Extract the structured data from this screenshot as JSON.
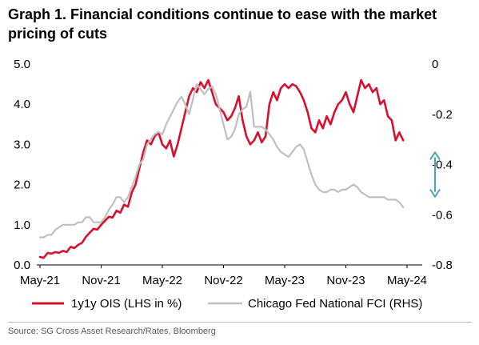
{
  "chart_data": {
    "type": "line",
    "title": "Graph 1. Financial conditions continue to ease with the market pricing of cuts",
    "source": "Source: SG Cross Asset Research/Rates, Bloomberg",
    "x_tick_labels": [
      "May-21",
      "Nov-21",
      "May-22",
      "Nov-22",
      "May-23",
      "Nov-23",
      "May-24"
    ],
    "y_left": {
      "range": [
        0.0,
        5.0
      ],
      "tick_labels": [
        "0.0",
        "1.0",
        "2.0",
        "3.0",
        "4.0",
        "5.0"
      ],
      "tick_values": [
        0.0,
        1.0,
        2.0,
        3.0,
        4.0,
        5.0
      ]
    },
    "y_right": {
      "range": [
        -0.8,
        0.0
      ],
      "tick_labels": [
        "-0.8",
        "-0.6",
        "-0.4",
        "-0.2",
        "0"
      ],
      "tick_values": [
        -0.8,
        -0.6,
        -0.4,
        -0.2,
        0.0
      ]
    },
    "legend_position": "bottom",
    "grid": false,
    "series": [
      {
        "name": "1y1y OIS (LHS in %)",
        "axis": "left",
        "color": "#d6102e",
        "points": [
          [
            0.0,
            0.2
          ],
          [
            0.25,
            0.18
          ],
          [
            0.5,
            0.3
          ],
          [
            0.75,
            0.28
          ],
          [
            1.0,
            0.32
          ],
          [
            1.25,
            0.3
          ],
          [
            1.5,
            0.35
          ],
          [
            1.75,
            0.32
          ],
          [
            2.0,
            0.45
          ],
          [
            2.25,
            0.42
          ],
          [
            2.5,
            0.5
          ],
          [
            2.75,
            0.55
          ],
          [
            3.0,
            0.7
          ],
          [
            3.25,
            0.8
          ],
          [
            3.5,
            0.9
          ],
          [
            3.75,
            0.88
          ],
          [
            4.0,
            1.0
          ],
          [
            4.25,
            1.1
          ],
          [
            4.5,
            1.2
          ],
          [
            4.75,
            1.18
          ],
          [
            5.0,
            1.35
          ],
          [
            5.25,
            1.3
          ],
          [
            5.5,
            1.5
          ],
          [
            5.75,
            1.45
          ],
          [
            6.0,
            1.8
          ],
          [
            6.25,
            2.0
          ],
          [
            6.5,
            2.4
          ],
          [
            6.75,
            2.8
          ],
          [
            7.0,
            3.1
          ],
          [
            7.25,
            3.0
          ],
          [
            7.5,
            3.2
          ],
          [
            7.75,
            3.3
          ],
          [
            8.0,
            3.0
          ],
          [
            8.25,
            2.9
          ],
          [
            8.5,
            3.1
          ],
          [
            8.75,
            2.7
          ],
          [
            9.0,
            3.0
          ],
          [
            9.25,
            3.4
          ],
          [
            9.5,
            3.8
          ],
          [
            9.75,
            4.2
          ],
          [
            10.0,
            4.4
          ],
          [
            10.25,
            4.3
          ],
          [
            10.5,
            4.55
          ],
          [
            10.75,
            4.4
          ],
          [
            11.0,
            4.6
          ],
          [
            11.25,
            4.3
          ],
          [
            11.5,
            4.0
          ],
          [
            11.75,
            3.9
          ],
          [
            12.0,
            3.8
          ],
          [
            12.25,
            3.6
          ],
          [
            12.5,
            3.7
          ],
          [
            12.75,
            3.9
          ],
          [
            13.0,
            4.2
          ],
          [
            13.25,
            3.6
          ],
          [
            13.5,
            3.2
          ],
          [
            13.75,
            3.0
          ],
          [
            14.0,
            3.1
          ],
          [
            14.25,
            3.3
          ],
          [
            14.5,
            3.05
          ],
          [
            14.75,
            3.2
          ],
          [
            15.0,
            4.0
          ],
          [
            15.25,
            4.3
          ],
          [
            15.5,
            4.1
          ],
          [
            15.75,
            4.4
          ],
          [
            16.0,
            4.5
          ],
          [
            16.25,
            4.4
          ],
          [
            16.5,
            4.5
          ],
          [
            16.75,
            4.45
          ],
          [
            17.0,
            4.3
          ],
          [
            17.25,
            4.1
          ],
          [
            17.5,
            3.8
          ],
          [
            17.75,
            3.4
          ],
          [
            18.0,
            3.3
          ],
          [
            18.25,
            3.6
          ],
          [
            18.5,
            3.4
          ],
          [
            18.75,
            3.7
          ],
          [
            19.0,
            3.5
          ],
          [
            19.25,
            3.8
          ],
          [
            19.5,
            4.0
          ],
          [
            19.75,
            4.1
          ],
          [
            20.0,
            4.3
          ],
          [
            20.25,
            4.0
          ],
          [
            20.5,
            3.8
          ],
          [
            20.75,
            4.2
          ],
          [
            21.0,
            4.6
          ],
          [
            21.25,
            4.4
          ],
          [
            21.5,
            4.5
          ],
          [
            21.75,
            4.3
          ],
          [
            22.0,
            4.4
          ],
          [
            22.25,
            4.0
          ],
          [
            22.5,
            4.1
          ],
          [
            22.75,
            3.7
          ],
          [
            23.0,
            3.6
          ],
          [
            23.25,
            3.1
          ],
          [
            23.5,
            3.3
          ],
          [
            23.75,
            3.1
          ]
        ]
      },
      {
        "name": "Chicago Fed National FCI (RHS)",
        "axis": "right",
        "color": "#bfbfbf",
        "points": [
          [
            0.0,
            -0.69
          ],
          [
            0.25,
            -0.69
          ],
          [
            0.5,
            -0.68
          ],
          [
            0.75,
            -0.68
          ],
          [
            1.0,
            -0.66
          ],
          [
            1.25,
            -0.65
          ],
          [
            1.5,
            -0.64
          ],
          [
            1.75,
            -0.64
          ],
          [
            2.0,
            -0.64
          ],
          [
            2.25,
            -0.64
          ],
          [
            2.5,
            -0.63
          ],
          [
            2.75,
            -0.63
          ],
          [
            3.0,
            -0.61
          ],
          [
            3.25,
            -0.61
          ],
          [
            3.5,
            -0.63
          ],
          [
            3.75,
            -0.63
          ],
          [
            4.0,
            -0.63
          ],
          [
            4.25,
            -0.61
          ],
          [
            4.5,
            -0.58
          ],
          [
            4.75,
            -0.56
          ],
          [
            5.0,
            -0.53
          ],
          [
            5.25,
            -0.53
          ],
          [
            5.5,
            -0.55
          ],
          [
            5.75,
            -0.53
          ],
          [
            6.0,
            -0.49
          ],
          [
            6.25,
            -0.45
          ],
          [
            6.5,
            -0.4
          ],
          [
            6.75,
            -0.38
          ],
          [
            7.0,
            -0.32
          ],
          [
            7.25,
            -0.3
          ],
          [
            7.5,
            -0.28
          ],
          [
            7.75,
            -0.27
          ],
          [
            8.0,
            -0.28
          ],
          [
            8.25,
            -0.24
          ],
          [
            8.5,
            -0.21
          ],
          [
            8.75,
            -0.18
          ],
          [
            9.0,
            -0.15
          ],
          [
            9.25,
            -0.13
          ],
          [
            9.5,
            -0.16
          ],
          [
            9.75,
            -0.2
          ],
          [
            10.0,
            -0.14
          ],
          [
            10.25,
            -0.08
          ],
          [
            10.5,
            -0.1
          ],
          [
            10.75,
            -0.12
          ],
          [
            11.0,
            -0.1
          ],
          [
            11.25,
            -0.09
          ],
          [
            11.5,
            -0.12
          ],
          [
            11.75,
            -0.18
          ],
          [
            12.0,
            -0.24
          ],
          [
            12.25,
            -0.3
          ],
          [
            12.5,
            -0.29
          ],
          [
            12.75,
            -0.26
          ],
          [
            13.0,
            -0.2
          ],
          [
            13.25,
            -0.18
          ],
          [
            13.5,
            -0.17
          ],
          [
            13.75,
            -0.11
          ],
          [
            14.0,
            -0.25
          ],
          [
            14.25,
            -0.25
          ],
          [
            14.5,
            -0.25
          ],
          [
            14.75,
            -0.26
          ],
          [
            15.0,
            -0.28
          ],
          [
            15.25,
            -0.3
          ],
          [
            15.5,
            -0.33
          ],
          [
            15.75,
            -0.35
          ],
          [
            16.0,
            -0.36
          ],
          [
            16.25,
            -0.37
          ],
          [
            16.5,
            -0.35
          ],
          [
            16.75,
            -0.33
          ],
          [
            17.0,
            -0.32
          ],
          [
            17.25,
            -0.34
          ],
          [
            17.5,
            -0.39
          ],
          [
            17.75,
            -0.44
          ],
          [
            18.0,
            -0.48
          ],
          [
            18.25,
            -0.5
          ],
          [
            18.5,
            -0.51
          ],
          [
            18.75,
            -0.51
          ],
          [
            19.0,
            -0.5
          ],
          [
            19.25,
            -0.5
          ],
          [
            19.5,
            -0.51
          ],
          [
            19.75,
            -0.5
          ],
          [
            20.0,
            -0.5
          ],
          [
            20.25,
            -0.49
          ],
          [
            20.5,
            -0.48
          ],
          [
            20.75,
            -0.49
          ],
          [
            21.0,
            -0.51
          ],
          [
            21.25,
            -0.52
          ],
          [
            21.5,
            -0.53
          ],
          [
            21.75,
            -0.53
          ],
          [
            22.0,
            -0.53
          ],
          [
            22.25,
            -0.53
          ],
          [
            22.5,
            -0.53
          ],
          [
            22.75,
            -0.54
          ],
          [
            23.0,
            -0.54
          ],
          [
            23.25,
            -0.54
          ],
          [
            23.5,
            -0.55
          ],
          [
            23.75,
            -0.57
          ]
        ]
      }
    ],
    "annotations": [
      {
        "type": "double-arrow",
        "color": "#4aa3b5",
        "y_left_from": 1.7,
        "y_left_to": 2.8
      }
    ]
  }
}
